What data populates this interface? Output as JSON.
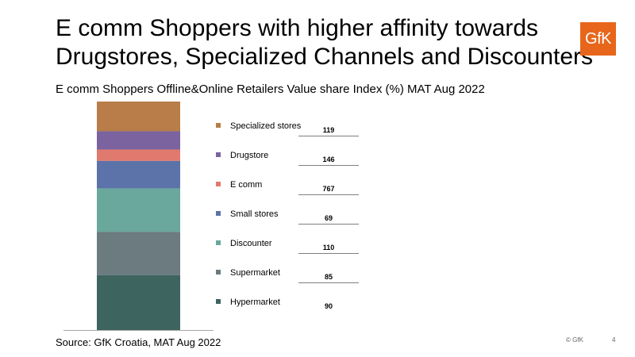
{
  "header": {
    "title_line1": "E comm Shoppers with higher affinity towards",
    "title_line2": "Drugstores, Specialized Channels and Discounters",
    "logo_text": "GfK",
    "logo_color": "#e8661b"
  },
  "subtitle": "E comm Shoppers Offline&Online Retailers Value share Index (%) MAT Aug 2022",
  "chart_data": {
    "type": "bar",
    "stacked": true,
    "title": "E comm Shoppers Offline&Online Retailers Value share Index (%) MAT Aug 2022",
    "categories": [
      "Specialized stores",
      "Drugstore",
      "E comm",
      "Small stores",
      "Discounter",
      "Supermarket",
      "Hypermarket"
    ],
    "index_values": [
      119,
      146,
      767,
      69,
      110,
      85,
      90
    ],
    "segment_shares": [
      13,
      8,
      5,
      12,
      19,
      19,
      24
    ],
    "colors": [
      "#b87d48",
      "#7b63a0",
      "#e07a6e",
      "#5b73a8",
      "#6aa79c",
      "#6b7b80",
      "#3e6460"
    ],
    "legend_placement": "right",
    "grid": false
  },
  "footer": {
    "source": "Source: GfK Croatia, MAT Aug 2022",
    "copyright": "© GfK",
    "page_number": "4"
  }
}
